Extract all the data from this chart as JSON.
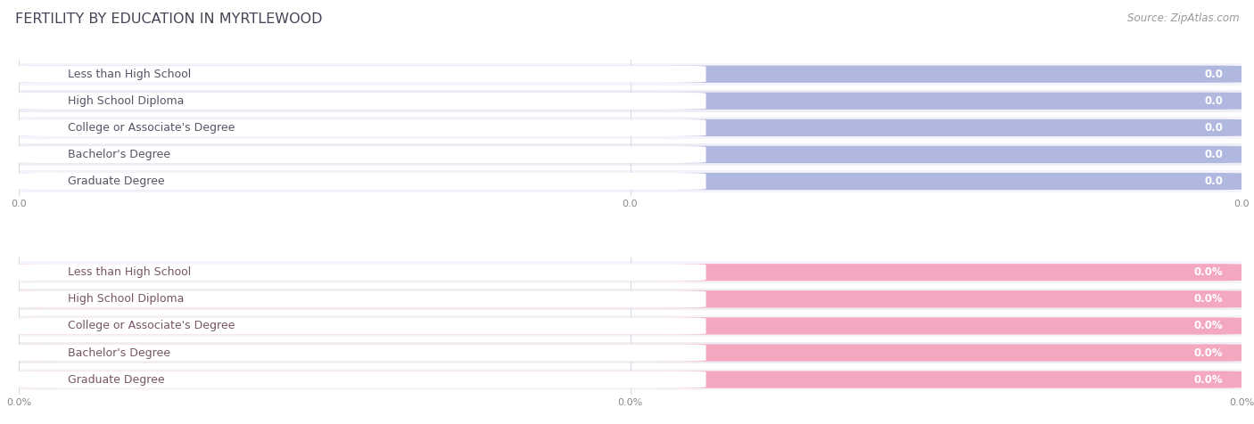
{
  "title": "FERTILITY BY EDUCATION IN MYRTLEWOOD",
  "source": "Source: ZipAtlas.com",
  "categories": [
    "Less than High School",
    "High School Diploma",
    "College or Associate's Degree",
    "Bachelor's Degree",
    "Graduate Degree"
  ],
  "top_values": [
    0.0,
    0.0,
    0.0,
    0.0,
    0.0
  ],
  "bottom_values": [
    0.0,
    0.0,
    0.0,
    0.0,
    0.0
  ],
  "top_bar_color": "#b0b8e0",
  "top_bar_light": "#c8cee8",
  "top_label_text_color": "#555566",
  "top_value_text_color": "#ffffff",
  "bottom_bar_color": "#f4a8c0",
  "bottom_bar_light": "#f8c8d8",
  "bottom_label_text_color": "#775566",
  "bottom_value_text_color": "#ffffff",
  "row_bg_odd": "#f2f2f8",
  "row_bg_even": "#f2f2f8",
  "row_separator": "#e0e0e8",
  "white_pill_color": "#ffffff",
  "fig_bg": "#ffffff",
  "title_color": "#444455",
  "title_fontsize": 11.5,
  "source_color": "#999999",
  "source_fontsize": 8.5,
  "label_fontsize": 9,
  "value_fontsize": 8.5,
  "tick_fontsize": 8,
  "tick_color": "#888888",
  "grid_color": "#d8d8e0",
  "top_xtick_labels": [
    "0.0",
    "0.0",
    "0.0"
  ],
  "bottom_xtick_labels": [
    "0.0%",
    "0.0%",
    "0.0%"
  ]
}
